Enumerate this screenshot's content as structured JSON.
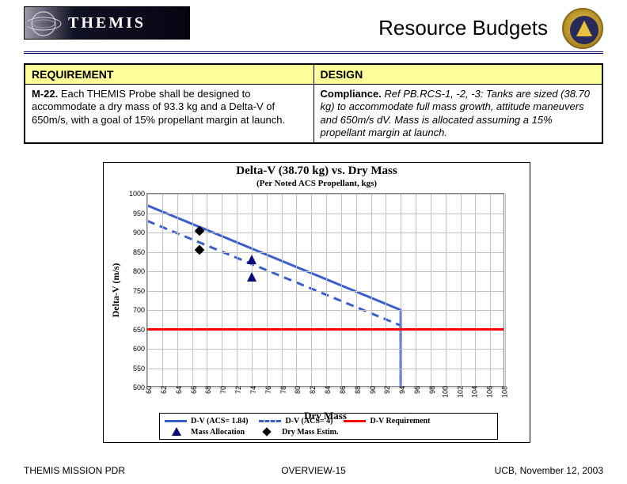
{
  "header": {
    "logo_text": "THEMIS",
    "slide_title": "Resource Budgets"
  },
  "req_table": {
    "headers": [
      "REQUIREMENT",
      "DESIGN"
    ],
    "rows": [
      {
        "req_id": "M-22.",
        "req_body": " Each THEMIS Probe shall be designed to accommodate a dry mass of 93.3 kg and a Delta-V of 650m/s, with a goal of 15% propellant margin at launch.",
        "design_label": "Compliance.",
        "design_body": " Ref PB.RCS-1, -2, -3: Tanks are sized (38.70 kg) to accommodate full mass growth, attitude maneuvers and 650m/s dV.  Mass is allocated assuming a 15% propellant margin at launch."
      }
    ]
  },
  "chart": {
    "type": "line",
    "title": "Delta-V (38.70 kg) vs. Dry Mass",
    "subtitle": "(Per Noted ACS Propellant, kgs)",
    "ylabel": "Delta-V (m/s)",
    "xlabel": "Dry Mass",
    "ylim": [
      500,
      1000
    ],
    "ytick_step": 50,
    "xlim": [
      60,
      108
    ],
    "xtick_step": 2,
    "grid_color": "#c0c0c0",
    "background_color": "#ffffff",
    "axis_color": "#808080",
    "title_fontsize": 15,
    "sub_fontsize": 11,
    "label_fontsize": 12,
    "tick_fontsize": 9,
    "series": [
      {
        "name": "D-V (ACS= 1.84)",
        "type": "line",
        "dash": "solid",
        "color": "#3a5fcd",
        "width": 3,
        "x": [
          60,
          94,
          94
        ],
        "y": [
          970,
          700,
          502
        ]
      },
      {
        "name": "D-V (ACS= 4)",
        "type": "line",
        "dash": "dashed",
        "color": "#3a5fcd",
        "width": 3,
        "x": [
          60,
          94,
          94
        ],
        "y": [
          930,
          660,
          502
        ]
      }
    ],
    "markers": [
      {
        "name": "Mass Allocation",
        "shape": "triangle",
        "color": "#0a0a7a",
        "size": 12,
        "points": [
          {
            "x": 74,
            "y": 830
          },
          {
            "x": 74,
            "y": 785
          }
        ]
      },
      {
        "name": "Dry Mass Estim.",
        "shape": "diamond",
        "color": "#000000",
        "size": 9,
        "points": [
          {
            "x": 67,
            "y": 905
          },
          {
            "x": 67,
            "y": 855
          }
        ]
      }
    ],
    "hline": {
      "name": "D-V Requirement",
      "y": 650,
      "color": "#ff0000",
      "width": 3
    },
    "legend": [
      {
        "label": "D-V (ACS= 1.84)",
        "kind": "line-solid",
        "color": "#3a5fcd"
      },
      {
        "label": "D-V (ACS= 4)",
        "kind": "line-dashed",
        "color": "#3a5fcd"
      },
      {
        "label": "D-V Requirement",
        "kind": "line-solid",
        "color": "#ff0000"
      },
      {
        "label": "Mass Allocation",
        "kind": "triangle",
        "color": "#0a0a7a"
      },
      {
        "label": "Dry Mass  Estim.",
        "kind": "diamond",
        "color": "#000000"
      }
    ]
  },
  "footer": {
    "left": "THEMIS MISSION PDR",
    "slide_prefix": "OVERVIEW-",
    "slide_num": "15",
    "right": "UCB, November 12, 2003"
  }
}
